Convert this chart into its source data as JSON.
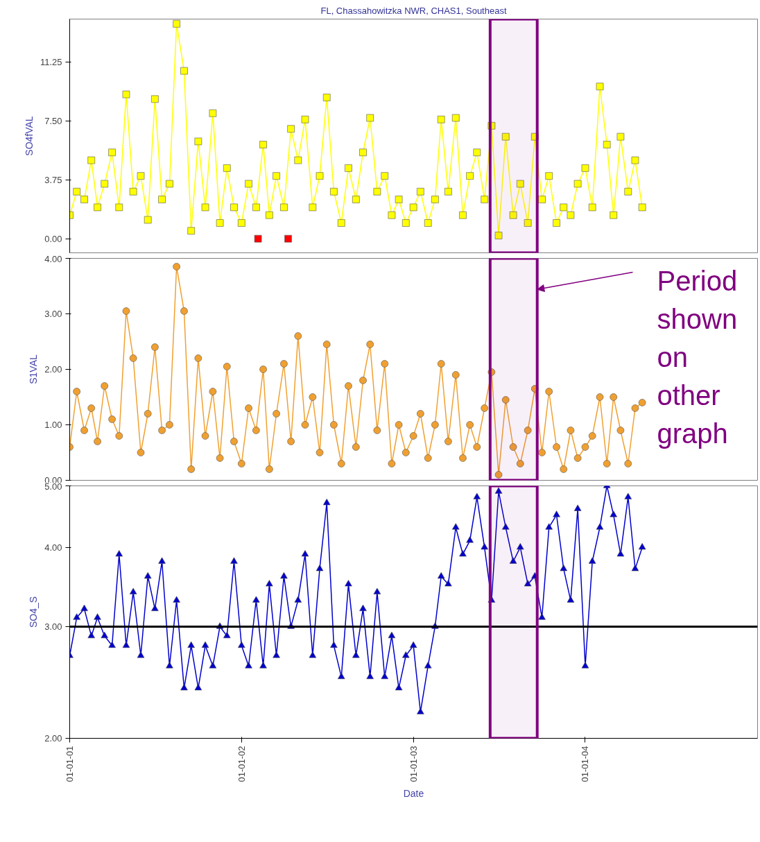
{
  "chart_data": [
    {
      "type": "line",
      "title": "FL, Chassahowitzka NWR, CHAS1, Southeast",
      "ylabel": "SO4fVAL",
      "marker": "square",
      "line_style": "solid",
      "tick_labels": "y",
      "xlim": [
        "2001-01-01",
        "2005-01-01"
      ],
      "ylim": [
        -0.9,
        14
      ],
      "yticks": [
        {
          "value": 0,
          "label": "0.00"
        },
        {
          "value": 3.75,
          "label": "3.75"
        },
        {
          "value": 7.5,
          "label": "7.50"
        },
        {
          "value": 11.25,
          "label": "11.25"
        }
      ],
      "x": [
        "2001-01-01",
        "2001-01-16",
        "2001-02-01",
        "2001-02-16",
        "2001-03-01",
        "2001-03-16",
        "2001-04-01",
        "2001-04-16",
        "2001-05-01",
        "2001-05-16",
        "2001-06-01",
        "2001-06-16",
        "2001-07-01",
        "2001-07-16",
        "2001-08-01",
        "2001-08-16",
        "2001-09-01",
        "2001-09-16",
        "2001-10-01",
        "2001-10-16",
        "2001-11-01",
        "2001-11-16",
        "2001-12-01",
        "2001-12-16",
        "2002-01-01",
        "2002-01-16",
        "2002-02-01",
        "2002-02-16",
        "2002-03-01",
        "2002-03-16",
        "2002-04-01",
        "2002-04-16",
        "2002-05-01",
        "2002-05-16",
        "2002-06-01",
        "2002-06-16",
        "2002-07-01",
        "2002-07-16",
        "2002-08-01",
        "2002-08-16",
        "2002-09-01",
        "2002-09-16",
        "2002-10-01",
        "2002-10-16",
        "2002-11-01",
        "2002-11-16",
        "2002-12-01",
        "2002-12-16",
        "2003-01-01",
        "2003-01-16",
        "2003-02-01",
        "2003-02-16",
        "2003-03-01",
        "2003-03-16",
        "2003-04-01",
        "2003-04-16",
        "2003-05-01",
        "2003-05-16",
        "2003-06-01",
        "2003-06-16",
        "2003-07-01",
        "2003-07-16",
        "2003-08-01",
        "2003-08-16",
        "2003-09-01",
        "2003-09-16",
        "2003-10-01",
        "2003-10-16",
        "2003-11-01",
        "2003-11-16",
        "2003-12-01",
        "2003-12-16",
        "2004-01-01",
        "2004-01-16",
        "2004-02-01",
        "2004-02-16",
        "2004-03-01",
        "2004-03-16",
        "2004-04-01",
        "2004-04-16",
        "2004-05-01"
      ],
      "series": [
        {
          "color": "#ffff00",
          "values": [
            1.5,
            3.0,
            2.5,
            5.0,
            2.0,
            3.5,
            5.5,
            2.0,
            9.2,
            3.0,
            4.0,
            1.2,
            8.9,
            2.5,
            3.5,
            13.7,
            10.7,
            0.5,
            6.2,
            2.0,
            8.0,
            1.0,
            4.5,
            2.0,
            1.0,
            3.5,
            2.0,
            6.0,
            1.5,
            4.0,
            2.0,
            7.0,
            5.0,
            7.6,
            2.0,
            4.0,
            9.0,
            3.0,
            1.0,
            4.5,
            2.5,
            5.5,
            7.7,
            3.0,
            4.0,
            1.5,
            2.5,
            1.0,
            2.0,
            3.0,
            1.0,
            2.5,
            7.6,
            3.0,
            7.7,
            1.5,
            4.0,
            5.5,
            2.5,
            7.2,
            0.2,
            6.5,
            1.5,
            3.5,
            1.0,
            6.5,
            2.5,
            4.0,
            1.0,
            2.0,
            1.5,
            3.5,
            4.5,
            2.0,
            9.7,
            6.0,
            1.5,
            6.5,
            3.0,
            5.0,
            2.0
          ]
        },
        {
          "type": "scatter",
          "color": "#ff0000",
          "x": [
            "2002-02-05",
            "2002-04-10"
          ],
          "values": [
            0,
            0
          ]
        }
      ],
      "bands": [
        {
          "axis": "x",
          "from": "2003-06-13",
          "to": "2003-09-21",
          "color": "#800080"
        }
      ]
    },
    {
      "type": "line",
      "ylabel": "S1VAL",
      "marker": "circle",
      "line_style": "solid",
      "tick_labels": "y",
      "xlim": [
        "2001-01-01",
        "2005-01-01"
      ],
      "ylim": [
        0,
        4
      ],
      "yticks": [
        {
          "value": 0,
          "label": "0.00"
        },
        {
          "value": 1,
          "label": "1.00"
        },
        {
          "value": 2,
          "label": "2.00"
        },
        {
          "value": 3,
          "label": "3.00"
        },
        {
          "value": 4,
          "label": "4.00"
        }
      ],
      "x": [
        "2001-01-01",
        "2001-01-16",
        "2001-02-01",
        "2001-02-16",
        "2001-03-01",
        "2001-03-16",
        "2001-04-01",
        "2001-04-16",
        "2001-05-01",
        "2001-05-16",
        "2001-06-01",
        "2001-06-16",
        "2001-07-01",
        "2001-07-16",
        "2001-08-01",
        "2001-08-16",
        "2001-09-01",
        "2001-09-16",
        "2001-10-01",
        "2001-10-16",
        "2001-11-01",
        "2001-11-16",
        "2001-12-01",
        "2001-12-16",
        "2002-01-01",
        "2002-01-16",
        "2002-02-01",
        "2002-02-16",
        "2002-03-01",
        "2002-03-16",
        "2002-04-01",
        "2002-04-16",
        "2002-05-01",
        "2002-05-16",
        "2002-06-01",
        "2002-06-16",
        "2002-07-01",
        "2002-07-16",
        "2002-08-01",
        "2002-08-16",
        "2002-09-01",
        "2002-09-16",
        "2002-10-01",
        "2002-10-16",
        "2002-11-01",
        "2002-11-16",
        "2002-12-01",
        "2002-12-16",
        "2003-01-01",
        "2003-01-16",
        "2003-02-01",
        "2003-02-16",
        "2003-03-01",
        "2003-03-16",
        "2003-04-01",
        "2003-04-16",
        "2003-05-01",
        "2003-05-16",
        "2003-06-01",
        "2003-06-16",
        "2003-07-01",
        "2003-07-16",
        "2003-08-01",
        "2003-08-16",
        "2003-09-01",
        "2003-09-16",
        "2003-10-01",
        "2003-10-16",
        "2003-11-01",
        "2003-11-16",
        "2003-12-01",
        "2003-12-16",
        "2004-01-01",
        "2004-01-16",
        "2004-02-01",
        "2004-02-16",
        "2004-03-01",
        "2004-03-16",
        "2004-04-01",
        "2004-04-16",
        "2004-05-01"
      ],
      "series": [
        {
          "color": "#f0a030",
          "values": [
            0.6,
            1.6,
            0.9,
            1.3,
            0.7,
            1.7,
            1.1,
            0.8,
            3.05,
            2.2,
            0.5,
            1.2,
            2.4,
            0.9,
            1.0,
            3.85,
            3.05,
            0.2,
            2.2,
            0.8,
            1.6,
            0.4,
            2.05,
            0.7,
            0.3,
            1.3,
            0.9,
            2.0,
            0.2,
            1.2,
            2.1,
            0.7,
            2.6,
            1.0,
            1.5,
            0.5,
            2.45,
            1.0,
            0.3,
            1.7,
            0.6,
            1.8,
            2.45,
            0.9,
            2.1,
            0.3,
            1.0,
            0.5,
            0.8,
            1.2,
            0.4,
            1.0,
            2.1,
            0.7,
            1.9,
            0.4,
            1.0,
            0.6,
            1.3,
            1.95,
            0.1,
            1.45,
            0.6,
            0.3,
            0.9,
            1.65,
            0.5,
            1.6,
            0.6,
            0.2,
            0.9,
            0.4,
            0.6,
            0.8,
            1.5,
            0.3,
            1.5,
            0.9,
            0.3,
            1.3,
            1.4
          ]
        }
      ],
      "bands": [
        {
          "axis": "x",
          "from": "2003-06-13",
          "to": "2003-09-21",
          "color": "#800080"
        }
      ],
      "annotations": [
        {
          "text": "Period shown on other graph",
          "x": "2003-09-21",
          "y": 3.44
        }
      ]
    },
    {
      "type": "line",
      "xlabel": "Date",
      "ylabel": "SO4_S",
      "marker": "triangle",
      "line_style": "solid",
      "log": "y",
      "xlim": [
        "2001-01-01",
        "2005-01-01"
      ],
      "ylim": [
        2,
        5
      ],
      "xticks": [
        {
          "value": "2001-01-01",
          "label": "01-01-01"
        },
        {
          "value": "2002-01-01",
          "label": "01-01-02"
        },
        {
          "value": "2003-01-01",
          "label": "01-01-03"
        },
        {
          "value": "2004-01-01",
          "label": "01-01-04"
        }
      ],
      "yticks": [
        {
          "value": 2,
          "label": "2.00"
        },
        {
          "value": 3,
          "label": "3.00"
        },
        {
          "value": 4,
          "label": "4.00"
        },
        {
          "value": 5,
          "label": "5.00"
        }
      ],
      "x": [
        "2001-01-01",
        "2001-01-16",
        "2001-02-01",
        "2001-02-16",
        "2001-03-01",
        "2001-03-16",
        "2001-04-01",
        "2001-04-16",
        "2001-05-01",
        "2001-05-16",
        "2001-06-01",
        "2001-06-16",
        "2001-07-01",
        "2001-07-16",
        "2001-08-01",
        "2001-08-16",
        "2001-09-01",
        "2001-09-16",
        "2001-10-01",
        "2001-10-16",
        "2001-11-01",
        "2001-11-16",
        "2001-12-01",
        "2001-12-16",
        "2002-01-01",
        "2002-01-16",
        "2002-02-01",
        "2002-02-16",
        "2002-03-01",
        "2002-03-16",
        "2002-04-01",
        "2002-04-16",
        "2002-05-01",
        "2002-05-16",
        "2002-06-01",
        "2002-06-16",
        "2002-07-01",
        "2002-07-16",
        "2002-08-01",
        "2002-08-16",
        "2002-09-01",
        "2002-09-16",
        "2002-10-01",
        "2002-10-16",
        "2002-11-01",
        "2002-11-16",
        "2002-12-01",
        "2002-12-16",
        "2003-01-01",
        "2003-01-16",
        "2003-02-01",
        "2003-02-16",
        "2003-03-01",
        "2003-03-16",
        "2003-04-01",
        "2003-04-16",
        "2003-05-01",
        "2003-05-16",
        "2003-06-01",
        "2003-06-16",
        "2003-07-01",
        "2003-07-16",
        "2003-08-01",
        "2003-08-16",
        "2003-09-01",
        "2003-09-16",
        "2003-10-01",
        "2003-10-16",
        "2003-11-01",
        "2003-11-16",
        "2003-12-01",
        "2003-12-16",
        "2004-01-01",
        "2004-01-16",
        "2004-02-01",
        "2004-02-16",
        "2004-03-01",
        "2004-03-16",
        "2004-04-01",
        "2004-04-16",
        "2004-05-01"
      ],
      "series": [
        {
          "color": "#0000cc",
          "values": [
            2.7,
            3.1,
            3.2,
            2.9,
            3.1,
            2.9,
            2.8,
            3.9,
            2.8,
            3.4,
            2.7,
            3.6,
            3.2,
            3.8,
            2.6,
            3.3,
            2.4,
            2.8,
            2.4,
            2.8,
            2.6,
            3.0,
            2.9,
            3.8,
            2.8,
            2.6,
            3.3,
            2.6,
            3.5,
            2.7,
            3.6,
            3.0,
            3.3,
            3.9,
            2.7,
            3.7,
            4.7,
            2.8,
            2.5,
            3.5,
            2.7,
            3.2,
            2.5,
            3.4,
            2.5,
            2.9,
            2.4,
            2.7,
            2.8,
            2.2,
            2.6,
            3.0,
            3.6,
            3.5,
            4.3,
            3.9,
            4.1,
            4.8,
            4.0,
            3.3,
            4.9,
            4.3,
            3.8,
            4.0,
            3.5,
            3.6,
            3.1,
            4.3,
            4.5,
            3.7,
            3.3,
            4.6,
            2.6,
            3.8,
            4.3,
            5.0,
            4.5,
            3.9,
            4.8,
            3.7,
            4.0
          ]
        }
      ],
      "ref_lines": [
        {
          "axis": "y",
          "value": 3,
          "color": "#000000"
        }
      ],
      "bands": [
        {
          "axis": "x",
          "from": "2003-06-13",
          "to": "2003-09-21",
          "color": "#800080"
        }
      ]
    }
  ]
}
